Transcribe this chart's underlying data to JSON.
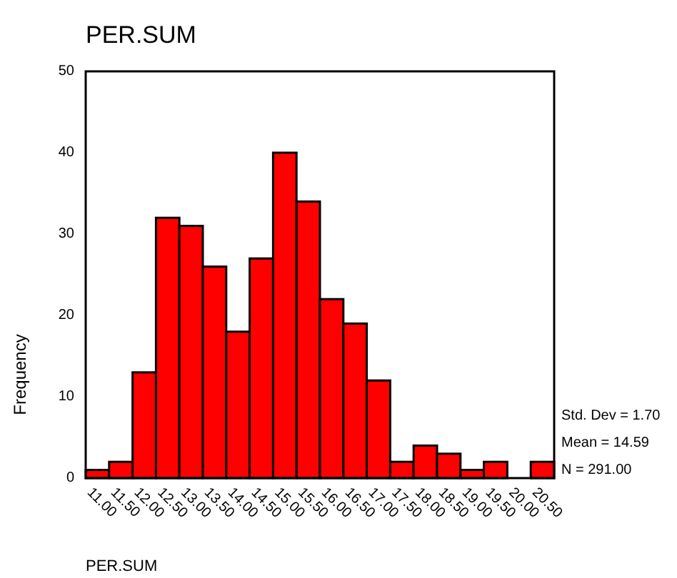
{
  "chart_data": {
    "type": "histogram",
    "title": "PER.SUM",
    "xlabel": "PER.SUM",
    "ylabel": "Frequency",
    "bins": [
      10.75,
      11.25,
      11.75,
      12.25,
      12.75,
      13.25,
      13.75,
      14.25,
      14.75,
      15.25,
      15.75,
      16.25,
      16.75,
      17.25,
      17.75,
      18.25,
      18.75,
      19.25,
      19.75,
      20.25,
      20.75
    ],
    "values": [
      1,
      2,
      13,
      32,
      31,
      26,
      18,
      27,
      40,
      34,
      22,
      19,
      12,
      2,
      4,
      3,
      1,
      2,
      0,
      2
    ],
    "color": "#ff0000",
    "xlim": [
      10.75,
      20.75
    ],
    "xticks": [
      {
        "value": 11,
        "label": "11.00"
      },
      {
        "value": 11.5,
        "label": "11.50"
      },
      {
        "value": 12,
        "label": "12.00"
      },
      {
        "value": 12.5,
        "label": "12.50"
      },
      {
        "value": 13,
        "label": "13.00"
      },
      {
        "value": 13.5,
        "label": "13.50"
      },
      {
        "value": 14,
        "label": "14.00"
      },
      {
        "value": 14.5,
        "label": "14.50"
      },
      {
        "value": 15,
        "label": "15.00"
      },
      {
        "value": 15.5,
        "label": "15.50"
      },
      {
        "value": 16,
        "label": "16.00"
      },
      {
        "value": 16.5,
        "label": "16.50"
      },
      {
        "value": 17,
        "label": "17.00"
      },
      {
        "value": 17.5,
        "label": "17.50"
      },
      {
        "value": 18,
        "label": "18.00"
      },
      {
        "value": 18.5,
        "label": "18.50"
      },
      {
        "value": 19,
        "label": "19.00"
      },
      {
        "value": 19.5,
        "label": "19.50"
      },
      {
        "value": 20,
        "label": "20.00"
      },
      {
        "value": 20.5,
        "label": "20.50"
      }
    ],
    "ylim": [
      0,
      50
    ],
    "yticks": [
      0,
      10,
      20,
      30,
      40,
      50
    ],
    "grid": false,
    "annotations": [
      "Std. Dev = 1.70",
      "Mean = 14.59",
      "N = 291.00"
    ]
  }
}
